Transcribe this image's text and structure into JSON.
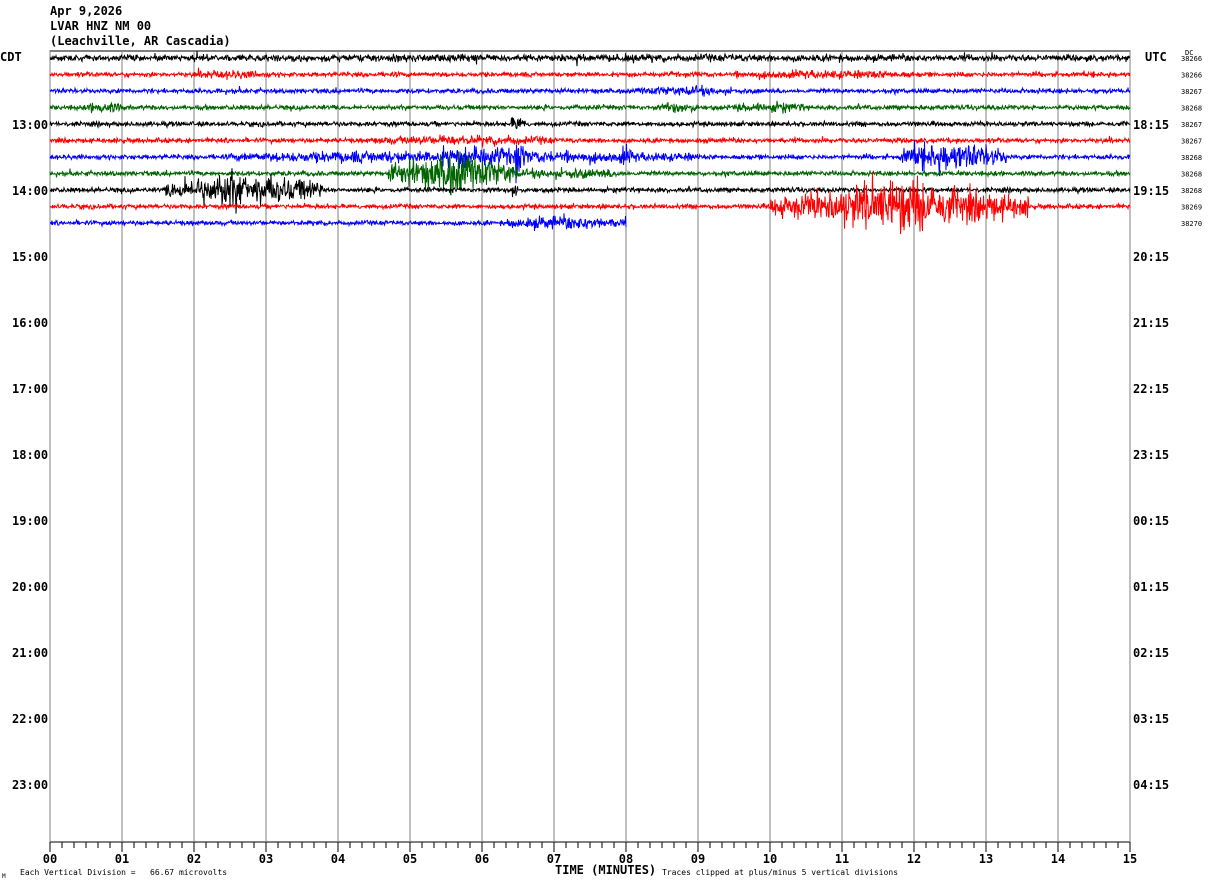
{
  "header": {
    "date": "Apr 9,2026",
    "station": "LVAR HNZ NM 00",
    "location": "(Leachville, AR Cascadia)"
  },
  "chart_data": {
    "type": "line",
    "title": "",
    "left_timezone": "CDT",
    "right_timezone": "UTC",
    "xlabel": "TIME (MINUTES)",
    "xlim": [
      0,
      15
    ],
    "x_tick_labels": [
      "00",
      "01",
      "02",
      "03",
      "04",
      "05",
      "06",
      "07",
      "08",
      "09",
      "10",
      "11",
      "12",
      "13",
      "14",
      "15"
    ],
    "left_hour_labels": [
      "13:00",
      "14:00",
      "15:00",
      "16:00",
      "17:00",
      "18:00",
      "19:00",
      "20:00",
      "21:00",
      "22:00",
      "23:00"
    ],
    "right_hour_labels": [
      "18:15",
      "19:15",
      "20:15",
      "21:15",
      "22:15",
      "23:15",
      "00:15",
      "01:15",
      "02:15",
      "03:15",
      "04:15"
    ],
    "minutes_per_line": 15,
    "dc_label": "DC",
    "dc_offsets": [
      "38266",
      "38266",
      "38267",
      "38268",
      "38267",
      "38267",
      "38268",
      "38268",
      "38268",
      "38269",
      "38270"
    ],
    "trace_colors": [
      "#000000",
      "#ff0000",
      "#0000ff",
      "#006400"
    ],
    "last_trace_end_minute": 8,
    "grid": true,
    "scale_note": "Each Vertical Division =   66.67 microvolts",
    "clip_note": "Traces clipped at plus/minus 5 vertical divisions",
    "corner_mark": "M"
  }
}
